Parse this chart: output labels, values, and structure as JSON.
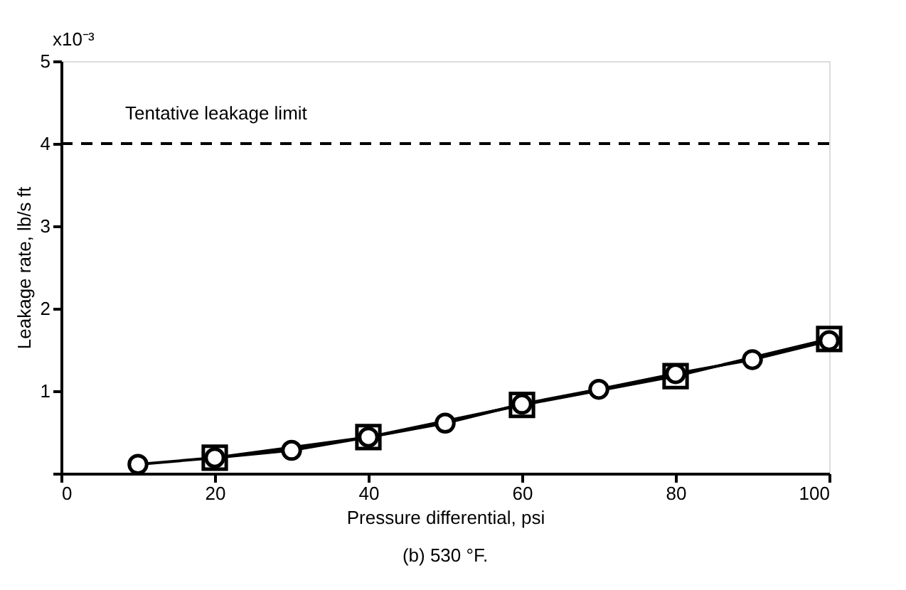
{
  "chart_data": {
    "type": "line",
    "xlabel": "Pressure differential, psi",
    "ylabel": "Leakage rate, lb/s ft",
    "annotations": [
      "(b) 530 °F.",
      "x10⁻³"
    ],
    "xlim": [
      0,
      100
    ],
    "xticks": [
      0,
      20,
      40,
      60,
      80,
      100
    ],
    "ylim": [
      0,
      5
    ],
    "yticks": [
      {
        "value": 0,
        "label": null
      },
      1,
      2,
      3,
      4,
      5
    ],
    "grid": false,
    "line_style": "solid",
    "ref_lines": [
      {
        "axis": "y",
        "value": 4,
        "label": "Tentative leakage limit",
        "color": "#000000",
        "line_style": "dashed"
      }
    ],
    "series": [
      {
        "color": "#000000",
        "marker": "square",
        "x": [
          20,
          40,
          60,
          80,
          100
        ],
        "values": [
          0.19,
          0.44,
          0.83,
          1.18,
          1.63
        ]
      },
      {
        "color": "#000000",
        "marker": "circle",
        "x": [
          10,
          20,
          30,
          40,
          50,
          60,
          70,
          80,
          90,
          100
        ],
        "values": [
          0.11,
          0.19,
          0.28,
          0.44,
          0.61,
          0.84,
          1.02,
          1.21,
          1.38,
          1.61
        ]
      }
    ]
  }
}
